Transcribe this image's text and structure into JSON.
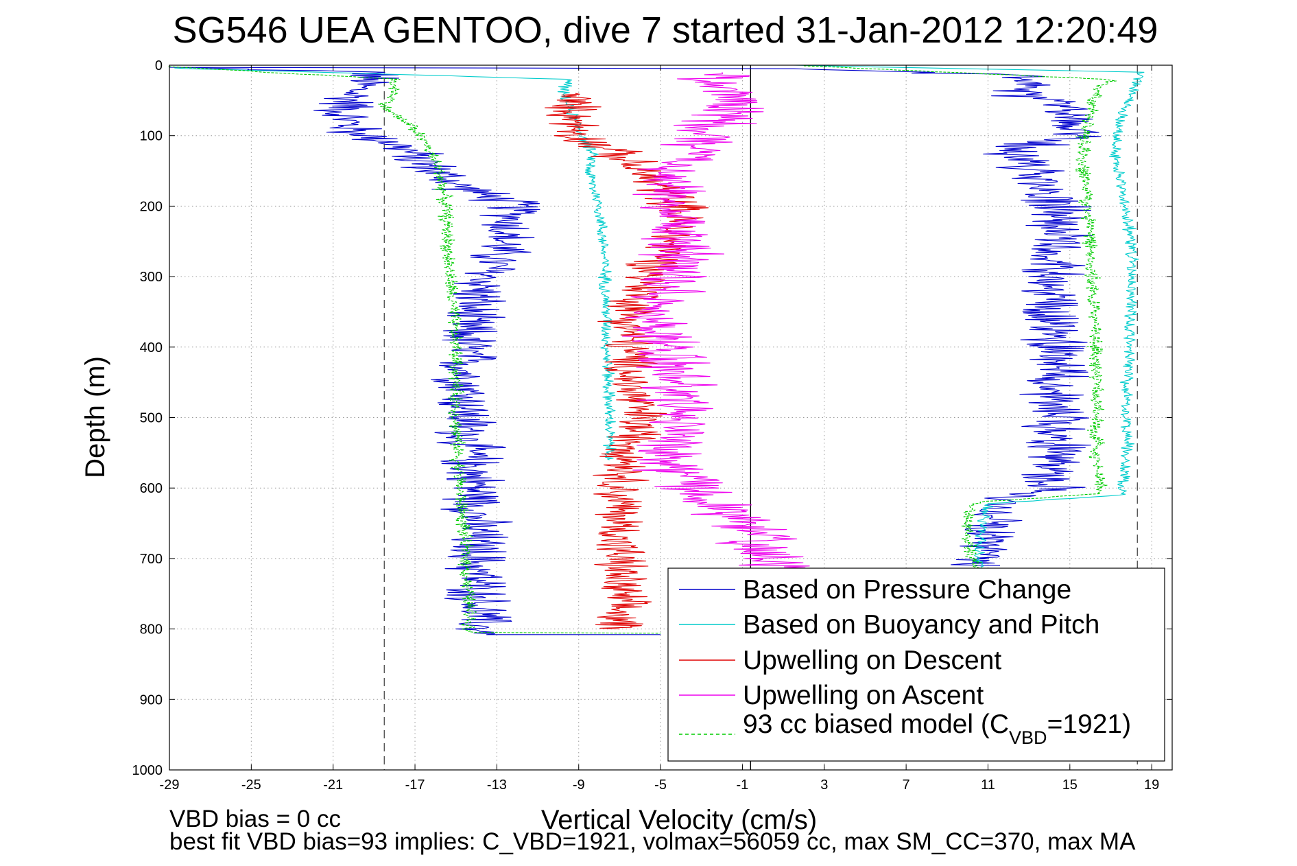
{
  "chart_data": {
    "type": "line",
    "title": "SG546 UEA GENTOO, dive 7 started 31-Jan-2012 12:20:49",
    "xlabel": "Vertical Velocity (cm/s)",
    "ylabel": "Depth (m)",
    "xlim": [
      -29,
      20
    ],
    "ylim": [
      0,
      1000
    ],
    "y_reversed": true,
    "grid": true,
    "legend_position": "bottom-right",
    "xticks": [
      "-29",
      "-25",
      "-21",
      "-17",
      "-13",
      "-9",
      "-5",
      "-1",
      "3",
      "7",
      "11",
      "15",
      "19"
    ],
    "yticks": [
      "0",
      "100",
      "200",
      "300",
      "400",
      "500",
      "600",
      "700",
      "800",
      "900",
      "1000"
    ],
    "reference_lines": [
      {
        "x": -18.5,
        "style": "dashed",
        "color": "#555555"
      },
      {
        "x": -0.6,
        "style": "solid",
        "color": "#000000"
      },
      {
        "x": 18.3,
        "style": "dashed",
        "color": "#555555"
      }
    ],
    "series": [
      {
        "name": "Based on Pressure Change",
        "color": "#0000cc",
        "noise": 1.3,
        "descent": [
          [
            -29,
            3
          ],
          [
            -19,
            10
          ],
          [
            -20,
            40
          ],
          [
            -20.5,
            70
          ],
          [
            -20,
            95
          ],
          [
            -18,
            110
          ],
          [
            -16.5,
            140
          ],
          [
            -15,
            170
          ],
          [
            -12,
            200
          ],
          [
            -12.5,
            240
          ],
          [
            -13.5,
            300
          ],
          [
            -14.5,
            360
          ],
          [
            -14.5,
            450
          ],
          [
            -14.5,
            520
          ],
          [
            -14,
            600
          ],
          [
            -14,
            700
          ],
          [
            -13.8,
            800
          ],
          [
            -13.5,
            808
          ],
          [
            -5,
            808
          ]
        ],
        "ascent": [
          [
            10.5,
            710
          ],
          [
            10.8,
            680
          ],
          [
            11,
            640
          ],
          [
            12,
            612
          ],
          [
            14,
            605
          ],
          [
            14.3,
            550
          ],
          [
            14.3,
            450
          ],
          [
            14.3,
            380
          ],
          [
            14,
            300
          ],
          [
            14.5,
            250
          ],
          [
            14.5,
            200
          ],
          [
            13,
            150
          ],
          [
            12,
            120
          ],
          [
            15.3,
            100
          ],
          [
            15.5,
            80
          ],
          [
            14.5,
            60
          ],
          [
            12.5,
            40
          ],
          [
            13,
            15
          ],
          [
            1.5,
            5
          ],
          [
            -29,
            3
          ]
        ]
      },
      {
        "name": "Based on Buoyancy and Pitch",
        "color": "#00cccc",
        "noise": 0.25,
        "descent": [
          [
            -29,
            4
          ],
          [
            -9.5,
            20
          ],
          [
            -9.8,
            40
          ],
          [
            -9.3,
            70
          ],
          [
            -8.8,
            100
          ],
          [
            -8.3,
            130
          ],
          [
            -8.5,
            150
          ],
          [
            -8.0,
            200
          ],
          [
            -7.8,
            250
          ],
          [
            -7.7,
            300
          ],
          [
            -7.6,
            400
          ],
          [
            -7.5,
            500
          ],
          [
            -7.5,
            560
          ]
        ],
        "ascent": [
          [
            10.5,
            712
          ],
          [
            10.6,
            680
          ],
          [
            10.8,
            640
          ],
          [
            11,
            622
          ],
          [
            17.5,
            610
          ],
          [
            17.8,
            560
          ],
          [
            17.8,
            450
          ],
          [
            18,
            350
          ],
          [
            18,
            250
          ],
          [
            17.6,
            180
          ],
          [
            17.2,
            120
          ],
          [
            17.4,
            80
          ],
          [
            18,
            40
          ],
          [
            18.5,
            10
          ],
          [
            1.5,
            0
          ]
        ]
      },
      {
        "name": "Upwelling on Descent",
        "color": "#e00000",
        "noise": 1.1,
        "descent": [
          [
            -9.5,
            40
          ],
          [
            -9,
            100
          ],
          [
            -7.5,
            120
          ],
          [
            -6,
            150
          ],
          [
            -4,
            200
          ],
          [
            -4.5,
            250
          ],
          [
            -5.5,
            300
          ],
          [
            -6.5,
            360
          ],
          [
            -6.5,
            450
          ],
          [
            -6,
            500
          ],
          [
            -6.5,
            560
          ],
          [
            -7,
            600
          ],
          [
            -7,
            700
          ],
          [
            -7,
            800
          ]
        ]
      },
      {
        "name": "Upwelling on Ascent",
        "color": "#ee00ee",
        "noise": 1.6,
        "ascent": [
          [
            1.8,
            745
          ],
          [
            0.5,
            700
          ],
          [
            -0.5,
            660
          ],
          [
            -1.5,
            630
          ],
          [
            -3.5,
            600
          ],
          [
            -4.5,
            560
          ],
          [
            -3.8,
            520
          ],
          [
            -4.2,
            450
          ],
          [
            -4.8,
            400
          ],
          [
            -5,
            350
          ],
          [
            -4.5,
            300
          ],
          [
            -3.8,
            250
          ],
          [
            -4.3,
            200
          ],
          [
            -4.5,
            150
          ],
          [
            -3.5,
            120
          ],
          [
            -2.5,
            90
          ],
          [
            -1.5,
            60
          ],
          [
            -2.5,
            30
          ],
          [
            -2,
            10
          ]
        ]
      },
      {
        "name": "93 cc biased model (C_VBD=1921)",
        "color": "#00cc00",
        "dashed": true,
        "noise": 0.3,
        "descent": [
          [
            -29,
            2
          ],
          [
            -18,
            20
          ],
          [
            -18,
            40
          ],
          [
            -18.5,
            60
          ],
          [
            -17,
            90
          ],
          [
            -16.5,
            110
          ],
          [
            -15.8,
            150
          ],
          [
            -15.5,
            200
          ],
          [
            -15.3,
            300
          ],
          [
            -15,
            400
          ],
          [
            -15,
            500
          ],
          [
            -14.8,
            600
          ],
          [
            -14.5,
            700
          ],
          [
            -14.3,
            800
          ],
          [
            -14,
            805
          ],
          [
            -5,
            806
          ]
        ],
        "ascent": [
          [
            10.5,
            715
          ],
          [
            10.2,
            690
          ],
          [
            10,
            660
          ],
          [
            10,
            630
          ],
          [
            10.5,
            620
          ],
          [
            16.5,
            608
          ],
          [
            16.3,
            560
          ],
          [
            16.3,
            450
          ],
          [
            16.2,
            350
          ],
          [
            16.0,
            250
          ],
          [
            15.8,
            180
          ],
          [
            15.6,
            120
          ],
          [
            15.8,
            80
          ],
          [
            16.3,
            40
          ],
          [
            17,
            20
          ],
          [
            2,
            1
          ]
        ]
      }
    ],
    "legend": {
      "entries": [
        "Based on Pressure Change",
        "Based on Buoyancy and Pitch",
        "Upwelling on Descent",
        "Upwelling on Ascent"
      ],
      "last_entry_main": "93 cc biased model (C",
      "last_entry_sub": "VBD",
      "last_entry_tail": "=1921)"
    },
    "annotations": {
      "line1": "VBD bias = 0 cc",
      "line2": "best fit VBD bias=93 implies: C_VBD=1921, volmax=56059 cc, max SM_CC=370, max MA"
    }
  }
}
